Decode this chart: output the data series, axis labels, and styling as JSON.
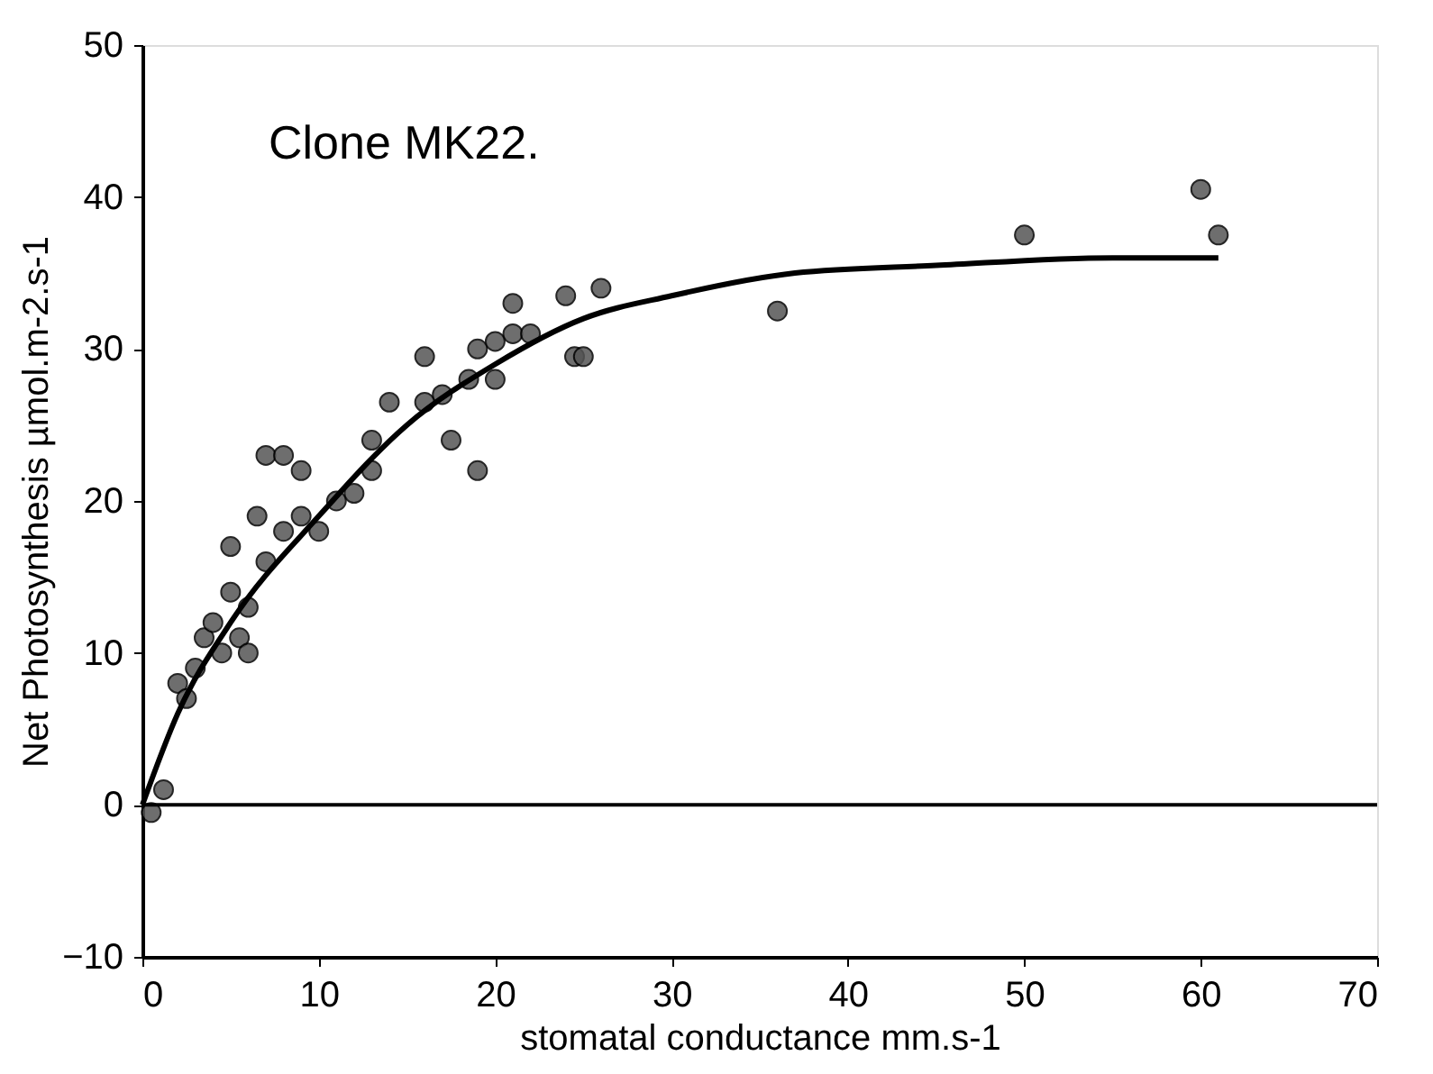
{
  "chart_data": {
    "type": "scatter",
    "annotations": [
      "Clone MK22."
    ],
    "xlabel": "stomatal conductance mm.s-1",
    "ylabel": "Net Photosynthesis µmol.m-2.s-1",
    "xlim": [
      0,
      70
    ],
    "xticks": [
      0,
      10,
      20,
      30,
      40,
      50,
      60,
      70
    ],
    "ylim": [
      -10,
      50
    ],
    "yticks": [
      -10,
      0,
      10,
      20,
      30,
      40,
      50
    ],
    "grid": false,
    "legend": false,
    "marker": "circle",
    "ref_lines": [
      {
        "axis": "y",
        "value": 0,
        "color": "#000000"
      }
    ],
    "series": [
      {
        "color": "#555555",
        "x": [
          0.5,
          1,
          1.2,
          2,
          2.5,
          3,
          3.5,
          4,
          4.5,
          5,
          5,
          5.5,
          6,
          6,
          6.5,
          7,
          7,
          8,
          8,
          9,
          9,
          10,
          11,
          12,
          13,
          13,
          14,
          16,
          16,
          17,
          17.5,
          18.5,
          19,
          19,
          20,
          20,
          21,
          21,
          22,
          24,
          24.5,
          25,
          26,
          36,
          50,
          60,
          61
        ],
        "values": [
          -0.5,
          null,
          1,
          8,
          7,
          9,
          11,
          12,
          10,
          14,
          17,
          11,
          10,
          13,
          19,
          23,
          16,
          23,
          18,
          22,
          19,
          18,
          20,
          20.5,
          22,
          24,
          26.5,
          29.5,
          26.5,
          27,
          24,
          28,
          22,
          30,
          30.5,
          28,
          31,
          33,
          31,
          33.5,
          29.5,
          29.5,
          34,
          32.5,
          37.5,
          40.5,
          37.5
        ]
      },
      {
        "type": "line",
        "color": "#000000",
        "marker": "none",
        "x": [
          0,
          2,
          5,
          10,
          15,
          20,
          25,
          30,
          37,
          45,
          55,
          61
        ],
        "values": [
          0,
          6,
          12,
          19,
          25,
          29,
          32,
          33.5,
          35,
          35.5,
          36,
          36
        ]
      }
    ]
  }
}
